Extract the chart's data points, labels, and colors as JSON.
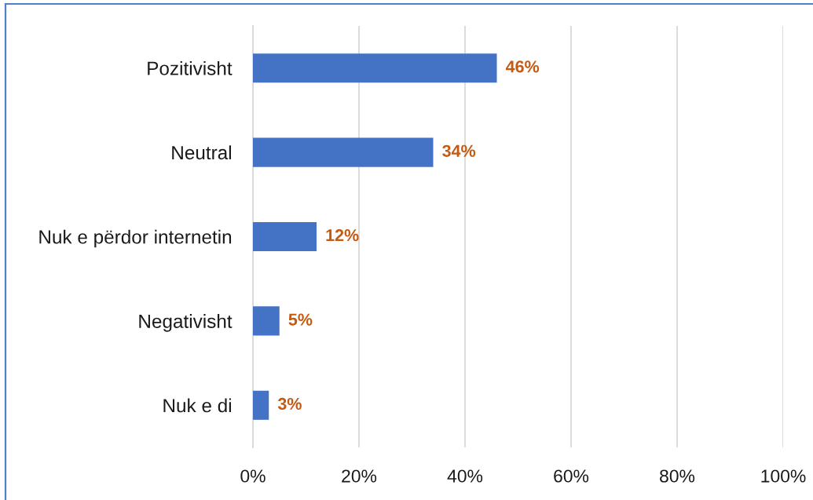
{
  "chart_data": {
    "type": "bar",
    "orientation": "horizontal",
    "categories": [
      "Pozitivisht",
      "Neutral",
      "Nuk e përdor internetin",
      "Negativisht",
      "Nuk e di"
    ],
    "values": [
      46,
      34,
      12,
      5,
      3
    ],
    "color": "#4472c4",
    "value_labels": [
      "46%",
      "34%",
      "12%",
      "5%",
      "3%"
    ],
    "xlim": [
      0,
      100
    ],
    "xticks": [
      {
        "value": 0,
        "label": "0%"
      },
      {
        "value": 20,
        "label": "20%"
      },
      {
        "value": 40,
        "label": "40%"
      },
      {
        "value": 60,
        "label": "60%"
      },
      {
        "value": 80,
        "label": "80%"
      },
      {
        "value": 100,
        "label": "100%"
      }
    ],
    "grid": "x",
    "legend": false
  }
}
